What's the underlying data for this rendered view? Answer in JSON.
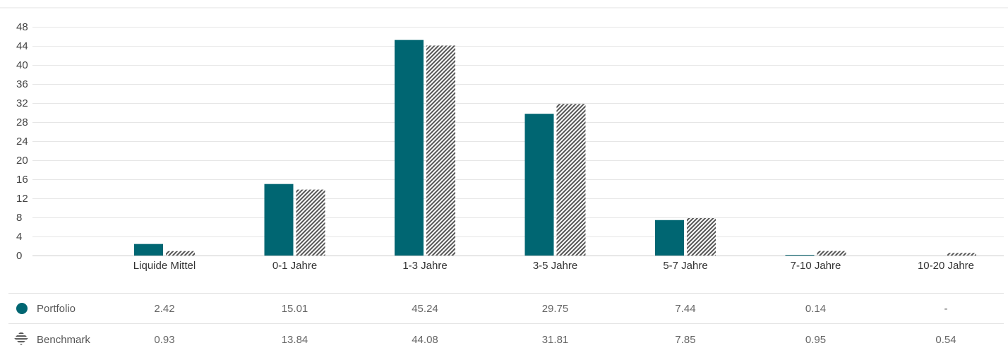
{
  "chart_data": {
    "type": "bar",
    "categories": [
      "Liquide Mittel",
      "0-1 Jahre",
      "1-3 Jahre",
      "3-5 Jahre",
      "5-7 Jahre",
      "7-10 Jahre",
      "10-20 Jahre"
    ],
    "series": [
      {
        "name": "Portfolio",
        "values": [
          2.42,
          15.01,
          45.24,
          29.75,
          7.44,
          0.14,
          null
        ],
        "color": "#006672",
        "pattern": "solid"
      },
      {
        "name": "Benchmark",
        "values": [
          0.93,
          13.84,
          44.08,
          31.81,
          7.85,
          0.95,
          0.54
        ],
        "color": "#555555",
        "pattern": "hatched"
      }
    ],
    "table": {
      "portfolio_row": [
        "2.42",
        "15.01",
        "45.24",
        "29.75",
        "7.44",
        "0.14",
        "-"
      ],
      "benchmark_row": [
        "0.93",
        "13.84",
        "44.08",
        "31.81",
        "7.85",
        "0.95",
        "0.54"
      ]
    },
    "yticks": [
      0,
      4,
      8,
      12,
      16,
      20,
      24,
      28,
      32,
      36,
      40,
      44,
      48
    ],
    "ylim": [
      0,
      48
    ],
    "grid": true,
    "legend": "table-left"
  }
}
